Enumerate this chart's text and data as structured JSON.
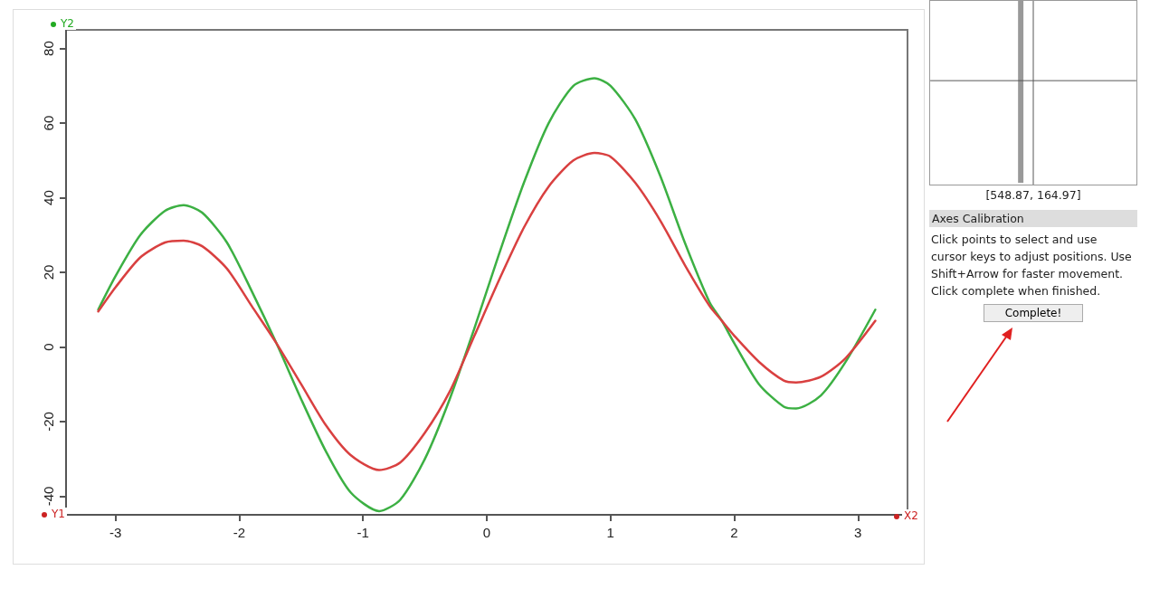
{
  "chart_data": {
    "type": "line",
    "xlim": [
      -3.4,
      3.4
    ],
    "xticks": [
      -3,
      -2,
      -1,
      0,
      1,
      2,
      3
    ],
    "ylim": [
      -45,
      85
    ],
    "yticks": [
      -40,
      -20,
      0,
      20,
      40,
      60,
      80
    ],
    "grid": false,
    "marker": "none",
    "line_style": "solid",
    "annotations": [
      "Y2",
      "Y1",
      "X2",
      "[548.87, 164.97]",
      "Axes Calibration",
      "Click points to select and use cursor keys to adjust positions. Use Shift+Arrow for faster movement. Click complete when finished.",
      "Complete!"
    ],
    "series": [
      {
        "color": "#3cb043",
        "x": [
          -3.14,
          -3.0,
          -2.8,
          -2.6,
          -2.45,
          -2.3,
          -2.1,
          -1.9,
          -1.7,
          -1.5,
          -1.3,
          -1.1,
          -0.87,
          -0.7,
          -0.5,
          -0.3,
          -0.1,
          0.1,
          0.3,
          0.5,
          0.7,
          0.87,
          1.0,
          1.2,
          1.4,
          1.6,
          1.8,
          1.9,
          2.0,
          2.2,
          2.4,
          2.5,
          2.7,
          2.9,
          3.14
        ],
        "values": [
          10,
          19,
          30,
          36.5,
          38,
          36,
          28,
          15,
          1,
          -14,
          -28,
          -39,
          -44,
          -41,
          -30,
          -14,
          5,
          25,
          44,
          60,
          70,
          72,
          70,
          61,
          46,
          28,
          12,
          7,
          1,
          -10,
          -16,
          -16.5,
          -13,
          -4,
          10
        ]
      },
      {
        "color": "#d94040",
        "x": [
          -3.14,
          -3.0,
          -2.8,
          -2.6,
          -2.45,
          -2.3,
          -2.1,
          -1.9,
          -1.7,
          -1.5,
          -1.3,
          -1.1,
          -0.87,
          -0.7,
          -0.5,
          -0.3,
          -0.1,
          0.1,
          0.3,
          0.5,
          0.7,
          0.87,
          1.0,
          1.2,
          1.4,
          1.6,
          1.8,
          1.9,
          2.0,
          2.2,
          2.4,
          2.5,
          2.7,
          2.9,
          3.14
        ],
        "values": [
          9.5,
          16,
          24,
          28,
          28.5,
          27,
          21,
          11,
          1,
          -10,
          -21,
          -29,
          -33,
          -31,
          -23,
          -12,
          3,
          18,
          32,
          43,
          50,
          52,
          51,
          44,
          34,
          22,
          11,
          7,
          3,
          -4,
          -9,
          -9.5,
          -8,
          -3,
          7
        ]
      }
    ]
  }
}
